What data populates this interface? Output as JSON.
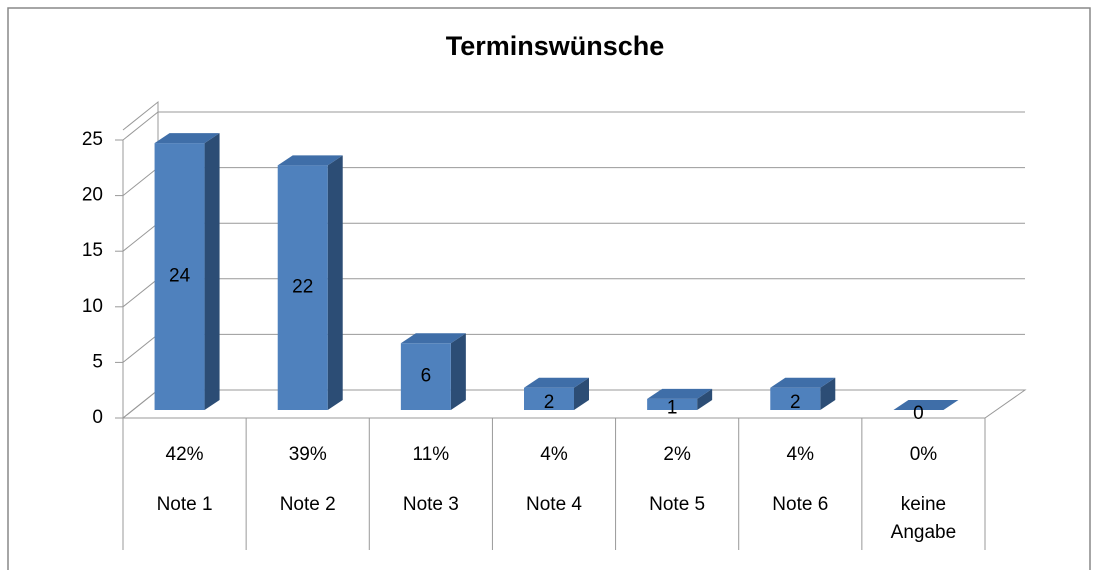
{
  "chart_data": {
    "type": "bar3d",
    "title": "Terminswünsche",
    "categories": [
      "Note 1",
      "Note 2",
      "Note 3",
      "Note 4",
      "Note 5",
      "Note 6",
      "keine Angabe"
    ],
    "values": [
      24,
      22,
      6,
      2,
      1,
      2,
      0
    ],
    "percent_labels": [
      "42%",
      "39%",
      "11%",
      "4%",
      "2%",
      "4%",
      "0%"
    ],
    "color": "#4f81bd",
    "ylim": [
      0,
      25
    ],
    "yticks": [
      0,
      5,
      10,
      15,
      20,
      25
    ],
    "grid": true
  }
}
